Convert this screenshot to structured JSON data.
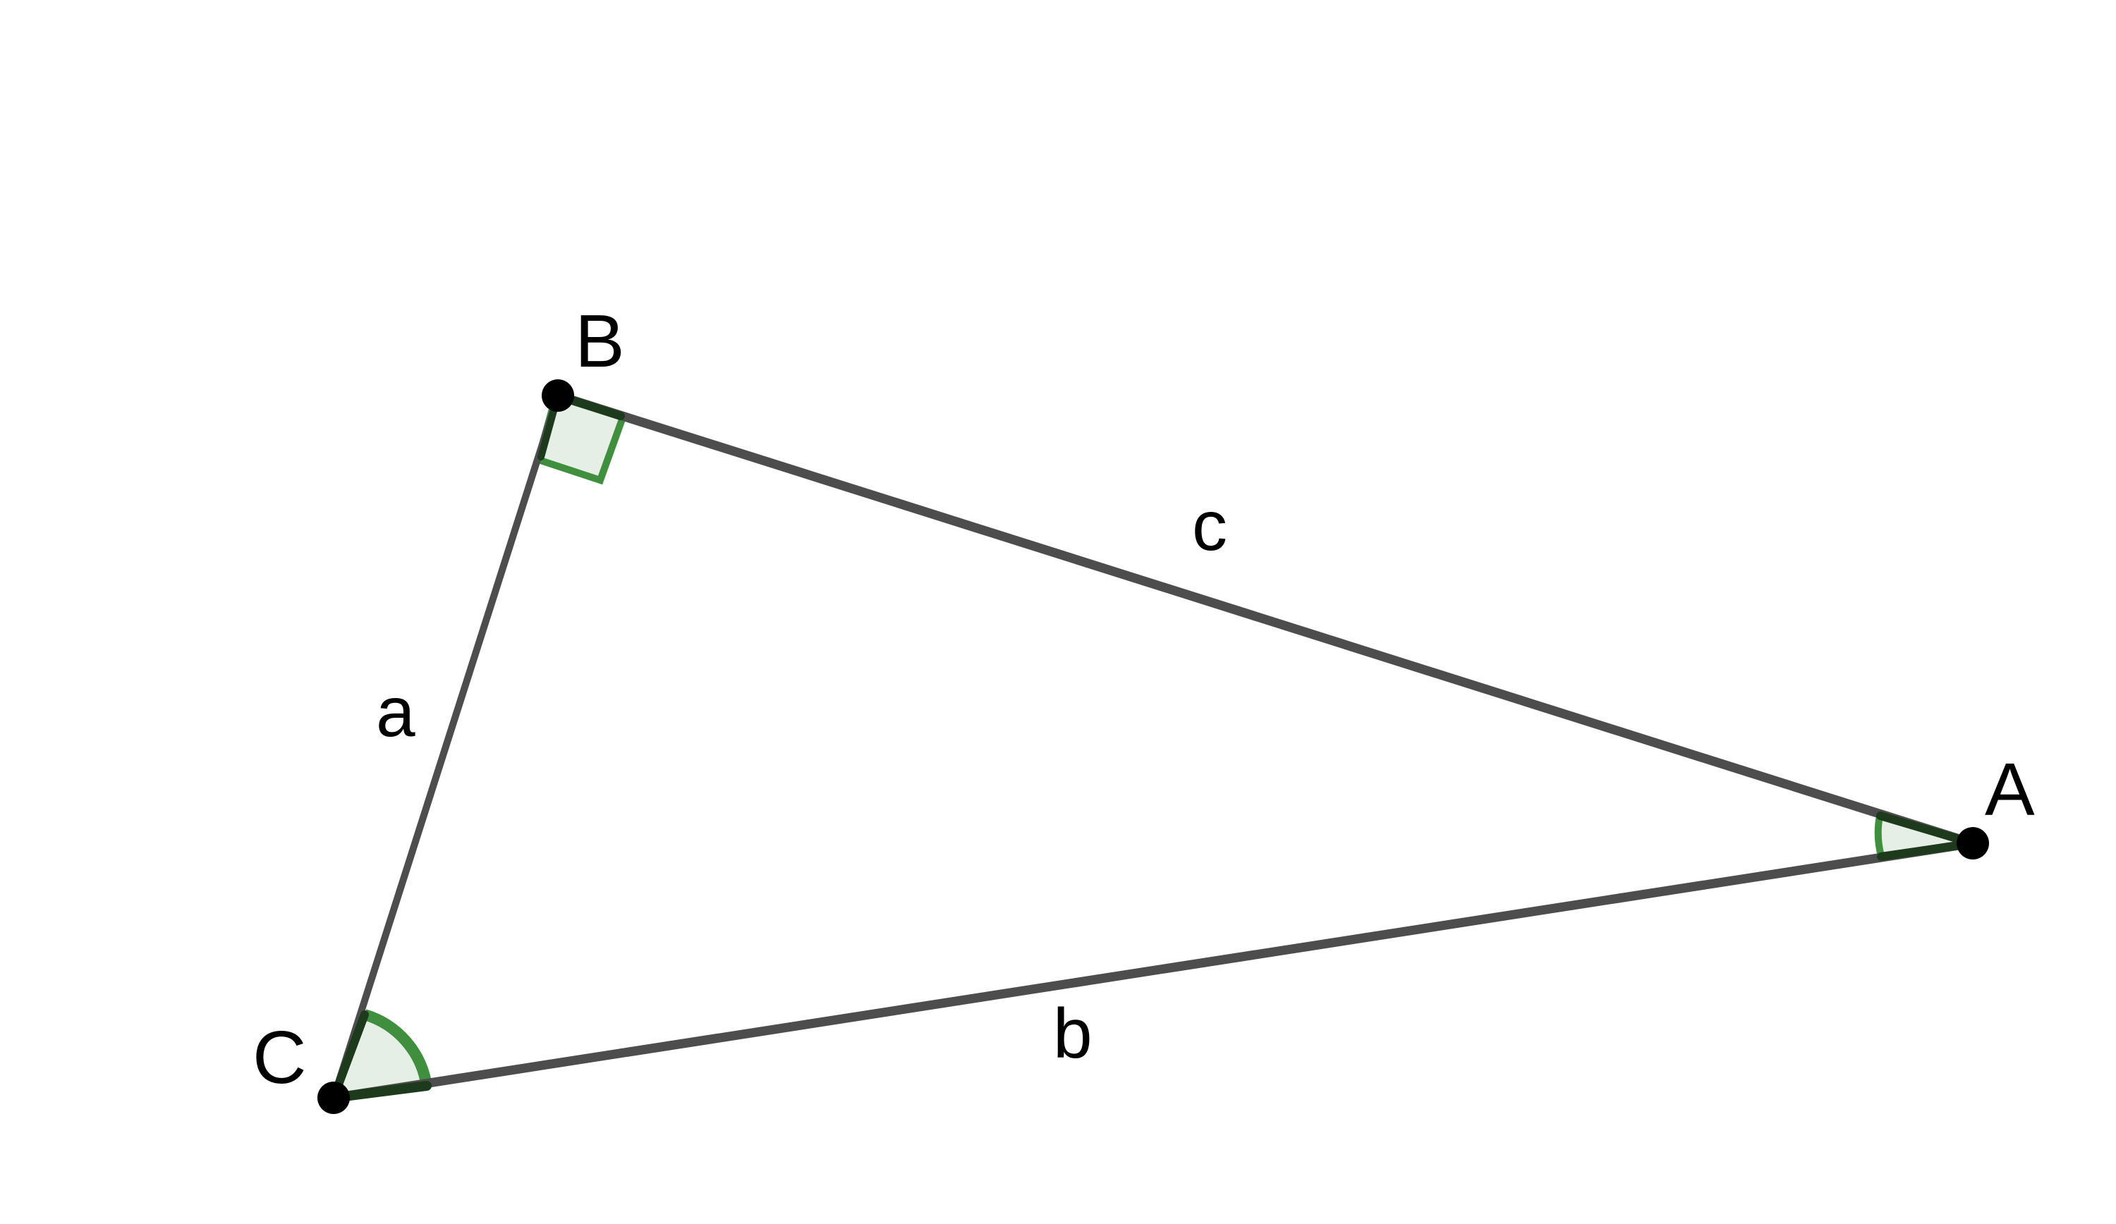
{
  "diagram": {
    "vertices": [
      {
        "id": "A",
        "label": "A"
      },
      {
        "id": "B",
        "label": "B"
      },
      {
        "id": "C",
        "label": "C"
      }
    ],
    "sides": [
      {
        "id": "a",
        "label": "a",
        "from": "B",
        "to": "C"
      },
      {
        "id": "b",
        "label": "b",
        "from": "C",
        "to": "A"
      },
      {
        "id": "c",
        "label": "c",
        "from": "A",
        "to": "B"
      }
    ],
    "angle_marks": [
      {
        "vertex": "B",
        "type": "right"
      },
      {
        "vertex": "A",
        "type": "arc"
      },
      {
        "vertex": "C",
        "type": "arc"
      }
    ],
    "colors": {
      "side_stroke": "#4d4d4d",
      "angle_stroke": "#3f8f3f",
      "angle_fill": "#e6efe6",
      "point": "#000000",
      "background": "#ffffff"
    }
  }
}
